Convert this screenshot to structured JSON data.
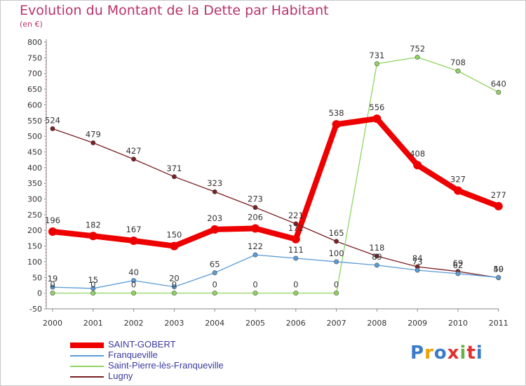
{
  "title": "Evolution du Montant de la Dette par Habitant",
  "unit_label": "(en €)",
  "logo": {
    "text": "Proxiti",
    "colors": [
      "#3b7bc7",
      "#f0a000",
      "#3b7bc7",
      "#e03030",
      "#6ab04c",
      "#e03030",
      "#3b7bc7"
    ]
  },
  "chart_data": {
    "type": "line",
    "x": [
      "2000",
      "2001",
      "2002",
      "2003",
      "2004",
      "2005",
      "2006",
      "2007",
      "2008",
      "2009",
      "2010",
      "2011"
    ],
    "ylim": [
      -50,
      800
    ],
    "yticks": [
      -50,
      0,
      50,
      100,
      150,
      200,
      250,
      300,
      350,
      400,
      450,
      500,
      550,
      600,
      650,
      700,
      750,
      800
    ],
    "grid": false,
    "legend_position": "bottom",
    "series": [
      {
        "name": "SAINT-GOBERT",
        "color": "#ee0000",
        "values": [
          196,
          182,
          167,
          150,
          203,
          206,
          172,
          538,
          556,
          408,
          327,
          277
        ],
        "labels": [
          "196",
          "182",
          "167",
          "150",
          "203",
          "206",
          "172",
          "538",
          "556",
          "408",
          "327",
          "277"
        ]
      },
      {
        "name": "Franqueville",
        "color": "#5b9bd5",
        "values": [
          19,
          15,
          40,
          20,
          65,
          122,
          111,
          100,
          89,
          73,
          62,
          50
        ],
        "labels": [
          "19",
          "15",
          "40",
          "20",
          "65",
          "122",
          "111",
          "100",
          "89",
          "73",
          "62",
          "50"
        ]
      },
      {
        "name": "Saint-Pierre-lès-Franqueville",
        "color": "#8fd460",
        "values": [
          0,
          0,
          0,
          0,
          0,
          0,
          0,
          0,
          731,
          752,
          708,
          640
        ],
        "labels": [
          "0",
          "0",
          "0",
          "0",
          "0",
          "0",
          "0",
          "0",
          "731",
          "752",
          "708",
          "640"
        ]
      },
      {
        "name": "Lugny",
        "color": "#7a1f24",
        "values": [
          524,
          479,
          427,
          371,
          323,
          273,
          221,
          165,
          118,
          84,
          69,
          49
        ],
        "labels": [
          "524",
          "479",
          "427",
          "371",
          "323",
          "273",
          "221",
          "165",
          "118",
          "84",
          "69",
          "49"
        ]
      }
    ]
  }
}
